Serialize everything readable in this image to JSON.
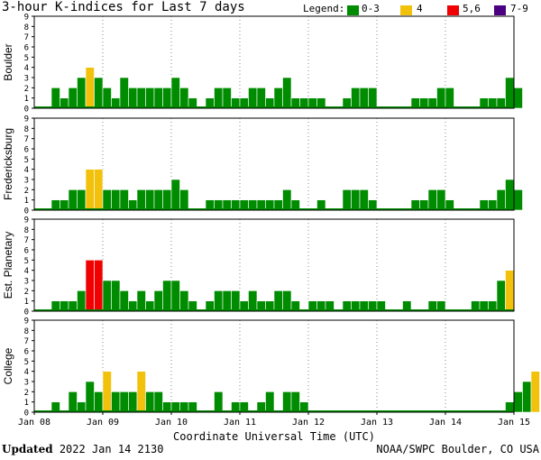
{
  "title": "3-hour K-indices for Last 7 days",
  "legend": {
    "label": "Legend:",
    "items": [
      {
        "label": "0-3",
        "color": "#008C00"
      },
      {
        "label": "4",
        "color": "#F2C10C"
      },
      {
        "label": "5,6",
        "color": "#F00000"
      },
      {
        "label": "7-9",
        "color": "#4B0082"
      }
    ]
  },
  "footer": {
    "updated_label": "Updated",
    "updated_value": "2022 Jan 14 2130",
    "credit": "NOAA/SWPC Boulder, CO USA"
  },
  "chart_data": {
    "type": "bar",
    "xlabel": "Coordinate Universal Time (UTC)",
    "x_ticks": [
      "Jan 08",
      "Jan 09",
      "Jan 10",
      "Jan 11",
      "Jan 12",
      "Jan 13",
      "Jan 14",
      "Jan 15"
    ],
    "ylim": [
      0,
      9
    ],
    "y_ticks": [
      "0",
      "1",
      "2",
      "3",
      "4",
      "5",
      "6",
      "7",
      "8",
      "9"
    ],
    "grid": "vertical dotted lines at each day",
    "intervals_per_day": 8,
    "panels": [
      {
        "name": "Boulder",
        "values": [
          0,
          0,
          2,
          1,
          2,
          3,
          4,
          3,
          2,
          1,
          3,
          2,
          2,
          2,
          2,
          2,
          3,
          2,
          1,
          0,
          1,
          2,
          2,
          1,
          1,
          2,
          2,
          1,
          2,
          3,
          1,
          1,
          1,
          1,
          0,
          0,
          1,
          2,
          2,
          2,
          0,
          0,
          0,
          0,
          1,
          1,
          1,
          2,
          2,
          0,
          0,
          0,
          1,
          1,
          1,
          3,
          2,
          0
        ]
      },
      {
        "name": "Fredericksburg",
        "values": [
          0,
          0,
          1,
          1,
          2,
          2,
          4,
          4,
          2,
          2,
          2,
          1,
          2,
          2,
          2,
          2,
          3,
          2,
          0,
          0,
          1,
          1,
          1,
          1,
          1,
          1,
          1,
          1,
          1,
          2,
          1,
          0,
          0,
          1,
          0,
          0,
          2,
          2,
          2,
          1,
          0,
          0,
          0,
          0,
          1,
          1,
          2,
          2,
          1,
          0,
          0,
          0,
          1,
          1,
          2,
          3,
          2,
          0
        ]
      },
      {
        "name": "Est. Planetary",
        "values": [
          0,
          0,
          1,
          1,
          1,
          2,
          5,
          5,
          3,
          3,
          2,
          1,
          2,
          1,
          2,
          3,
          3,
          2,
          1,
          0,
          1,
          2,
          2,
          2,
          1,
          2,
          1,
          1,
          2,
          2,
          1,
          0,
          1,
          1,
          1,
          0,
          1,
          1,
          1,
          1,
          1,
          0,
          0,
          1,
          0,
          0,
          1,
          1,
          0,
          0,
          0,
          1,
          1,
          1,
          3,
          4,
          0
        ]
      },
      {
        "name": "College",
        "values": [
          0,
          0,
          1,
          0,
          2,
          1,
          3,
          2,
          4,
          2,
          2,
          2,
          4,
          2,
          2,
          1,
          1,
          1,
          1,
          0,
          0,
          2,
          0,
          1,
          1,
          0,
          1,
          2,
          0,
          2,
          2,
          1,
          0,
          0,
          0,
          0,
          0,
          0,
          0,
          0,
          0,
          0,
          0,
          0,
          0,
          0,
          0,
          0,
          0,
          0,
          0,
          0,
          0,
          0,
          0,
          1,
          2,
          3,
          4,
          0
        ]
      }
    ]
  }
}
